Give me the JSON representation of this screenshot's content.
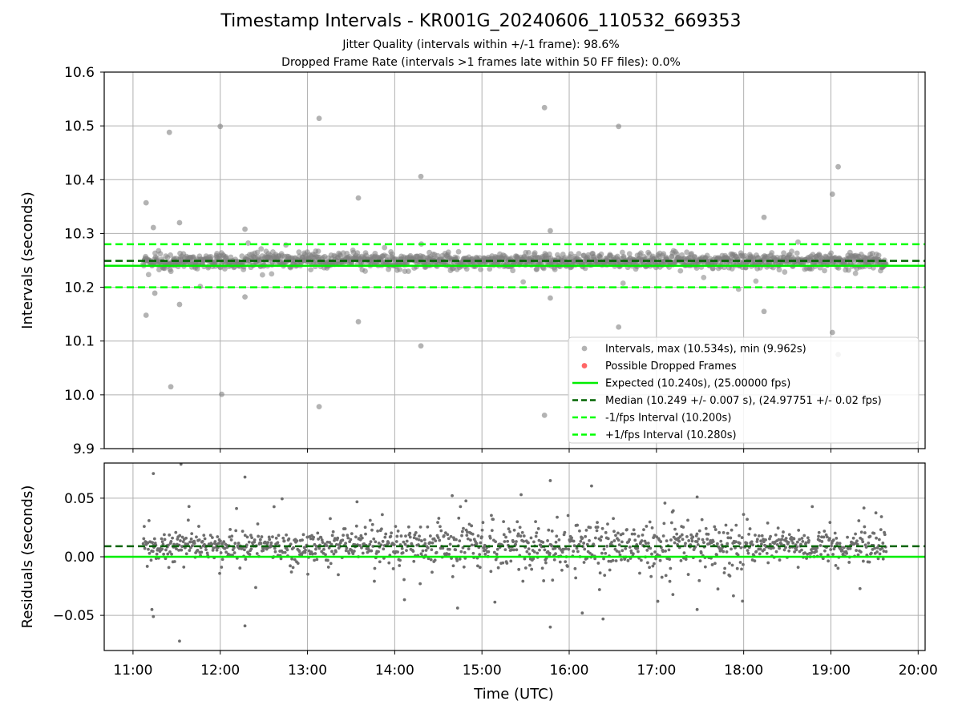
{
  "figure": {
    "title": "Timestamp Intervals - KR001G_20240606_110532_669353",
    "subtitle_1": "Jitter Quality (intervals within +/-1 frame): 98.6%",
    "subtitle_2": "Dropped Frame Rate (intervals >1 frames late within 50 FF files): 0.0%"
  },
  "colors": {
    "points": "#808080",
    "dropped": "#ff0000",
    "expected": "#00ee00",
    "median": "#006400",
    "bounds": "#00ff00",
    "grid": "#b0b0b0"
  },
  "chart_data": [
    {
      "type": "scatter",
      "panel": "intervals",
      "xlabel": "",
      "ylabel": "Intervals (seconds)",
      "ylim": [
        9.9,
        10.6
      ],
      "yticks": [
        9.9,
        10.0,
        10.1,
        10.2,
        10.3,
        10.4,
        10.5,
        10.6
      ],
      "ytick_labels": [
        "9.9",
        "10.0",
        "10.1",
        "10.2",
        "10.3",
        "10.4",
        "10.5",
        "10.6"
      ],
      "xlim_hours": [
        10.67,
        20.08
      ],
      "grid": true,
      "legend_position": "lower-right",
      "legend": [
        {
          "label": "Intervals, max (10.534s), min (9.962s)",
          "kind": "marker",
          "color": "#808080"
        },
        {
          "label": "Possible Dropped Frames",
          "kind": "marker",
          "color": "#ff0000"
        },
        {
          "label": "Expected (10.240s), (25.00000 fps)",
          "kind": "line",
          "color": "#00ee00",
          "dash": "solid"
        },
        {
          "label": "Median (10.249 +/- 0.007 s), (24.97751 +/- 0.02 fps)",
          "kind": "line",
          "color": "#006400",
          "dash": "dashed"
        },
        {
          "label": "-1/fps Interval (10.200s)",
          "kind": "line",
          "color": "#00ff00",
          "dash": "dashed"
        },
        {
          "label": "+1/fps Interval (10.280s)",
          "kind": "line",
          "color": "#00ff00",
          "dash": "dashed"
        }
      ],
      "reference_lines": {
        "expected": 10.24,
        "median": 10.249,
        "lower": 10.2,
        "upper": 10.28
      },
      "outliers": [
        {
          "time": "11:09",
          "value": 10.357
        },
        {
          "time": "11:09",
          "value": 10.148
        },
        {
          "time": "11:14",
          "value": 10.311
        },
        {
          "time": "11:15",
          "value": 10.189
        },
        {
          "time": "11:25",
          "value": 10.488
        },
        {
          "time": "11:26",
          "value": 10.015
        },
        {
          "time": "11:32",
          "value": 10.32
        },
        {
          "time": "11:32",
          "value": 10.168
        },
        {
          "time": "12:00",
          "value": 10.499
        },
        {
          "time": "12:01",
          "value": 10.001
        },
        {
          "time": "12:17",
          "value": 10.308
        },
        {
          "time": "12:17",
          "value": 10.182
        },
        {
          "time": "13:08",
          "value": 10.514
        },
        {
          "time": "13:08",
          "value": 9.978
        },
        {
          "time": "13:35",
          "value": 10.366
        },
        {
          "time": "13:35",
          "value": 10.136
        },
        {
          "time": "14:18",
          "value": 10.406
        },
        {
          "time": "14:18",
          "value": 10.091
        },
        {
          "time": "15:43",
          "value": 10.534
        },
        {
          "time": "15:43",
          "value": 9.962
        },
        {
          "time": "15:47",
          "value": 10.305
        },
        {
          "time": "15:47",
          "value": 10.18
        },
        {
          "time": "16:34",
          "value": 10.499
        },
        {
          "time": "16:34",
          "value": 10.126
        },
        {
          "time": "18:14",
          "value": 10.33
        },
        {
          "time": "18:14",
          "value": 10.155
        },
        {
          "time": "19:01",
          "value": 10.373
        },
        {
          "time": "19:01",
          "value": 10.116
        },
        {
          "time": "19:05",
          "value": 10.424
        },
        {
          "time": "19:05",
          "value": 10.075
        }
      ],
      "bulk_series": {
        "time_range": [
          "11:07",
          "19:38"
        ],
        "center": 10.249,
        "spread": 0.007
      }
    },
    {
      "type": "scatter",
      "panel": "residuals",
      "xlabel": "Time (UTC)",
      "ylabel": "Residuals (seconds)",
      "ylim": [
        -0.08,
        0.08
      ],
      "yticks": [
        -0.05,
        0.0,
        0.05
      ],
      "ytick_labels": [
        "−0.05",
        "0.00",
        "0.05"
      ],
      "xlim_hours": [
        10.67,
        20.08
      ],
      "xticks": [
        "11:00",
        "12:00",
        "13:00",
        "14:00",
        "15:00",
        "16:00",
        "17:00",
        "18:00",
        "19:00",
        "20:00"
      ],
      "grid": true,
      "reference_lines": {
        "zero": 0.0,
        "median_offset": 0.009
      },
      "outliers": [
        {
          "time": "11:14",
          "value": 0.071
        },
        {
          "time": "11:14",
          "value": -0.051
        },
        {
          "time": "11:13",
          "value": -0.045
        },
        {
          "time": "11:32",
          "value": -0.072
        },
        {
          "time": "11:33",
          "value": 0.079
        },
        {
          "time": "12:17",
          "value": 0.068
        },
        {
          "time": "12:17",
          "value": -0.059
        },
        {
          "time": "15:47",
          "value": 0.065
        },
        {
          "time": "15:47",
          "value": -0.06
        },
        {
          "time": "16:09",
          "value": -0.048
        },
        {
          "time": "17:28",
          "value": 0.051
        },
        {
          "time": "17:28",
          "value": -0.045
        }
      ],
      "bulk_series": {
        "time_range": [
          "11:07",
          "19:38"
        ],
        "center": 0.009,
        "spread": 0.012
      }
    }
  ]
}
